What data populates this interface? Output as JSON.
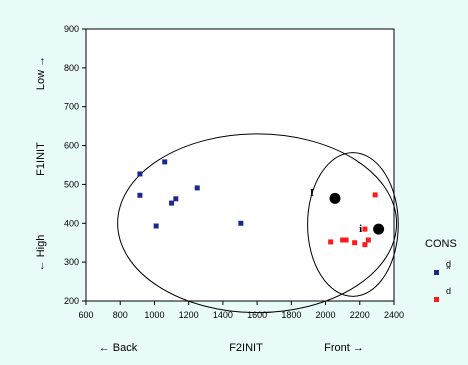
{
  "chart_data": {
    "type": "scatter",
    "title": "",
    "xlabel": "F2INIT",
    "ylabel": "F1INIT",
    "xlim": [
      600,
      2400
    ],
    "ylim": [
      200,
      900
    ],
    "x_ticks": [
      600,
      800,
      1000,
      1200,
      1400,
      1600,
      1800,
      2000,
      2200,
      2400
    ],
    "y_ticks": [
      200,
      300,
      400,
      500,
      600,
      700,
      800,
      900
    ],
    "x_annotations": {
      "left": "← Back",
      "right": "Front →"
    },
    "y_annotations": {
      "top": "Low →",
      "bottom": "← High"
    },
    "legend": {
      "title": "CONS",
      "position": "right"
    },
    "series": [
      {
        "name": "d̪",
        "color": "#1a2a8c",
        "marker": "square",
        "points": [
          [
            915,
            527
          ],
          [
            1060,
            558
          ],
          [
            915,
            472
          ],
          [
            1250,
            491
          ],
          [
            1125,
            463
          ],
          [
            1100,
            452
          ],
          [
            1010,
            393
          ],
          [
            1505,
            400
          ]
        ]
      },
      {
        "name": "d",
        "color": "#ff1a1a",
        "marker": "square",
        "points": [
          [
            2290,
            473
          ],
          [
            2230,
            385
          ],
          [
            2030,
            352
          ],
          [
            2100,
            357
          ],
          [
            2120,
            357
          ],
          [
            2170,
            350
          ],
          [
            2250,
            357
          ],
          [
            2230,
            345
          ]
        ]
      }
    ],
    "centroids": [
      {
        "x": 2055,
        "y": 464,
        "color": "#000000"
      },
      {
        "x": 2310,
        "y": 385,
        "color": "#000000"
      }
    ],
    "label_marks": [
      {
        "x": 1920,
        "y": 480,
        "text": "I"
      },
      {
        "x": 2205,
        "y": 388,
        "text": "i"
      }
    ],
    "ellipses": [
      {
        "cx": 1600,
        "cy": 400,
        "rx": 815,
        "ry": 230
      },
      {
        "cx": 2160,
        "cy": 397,
        "rx": 265,
        "ry": 185
      }
    ]
  }
}
